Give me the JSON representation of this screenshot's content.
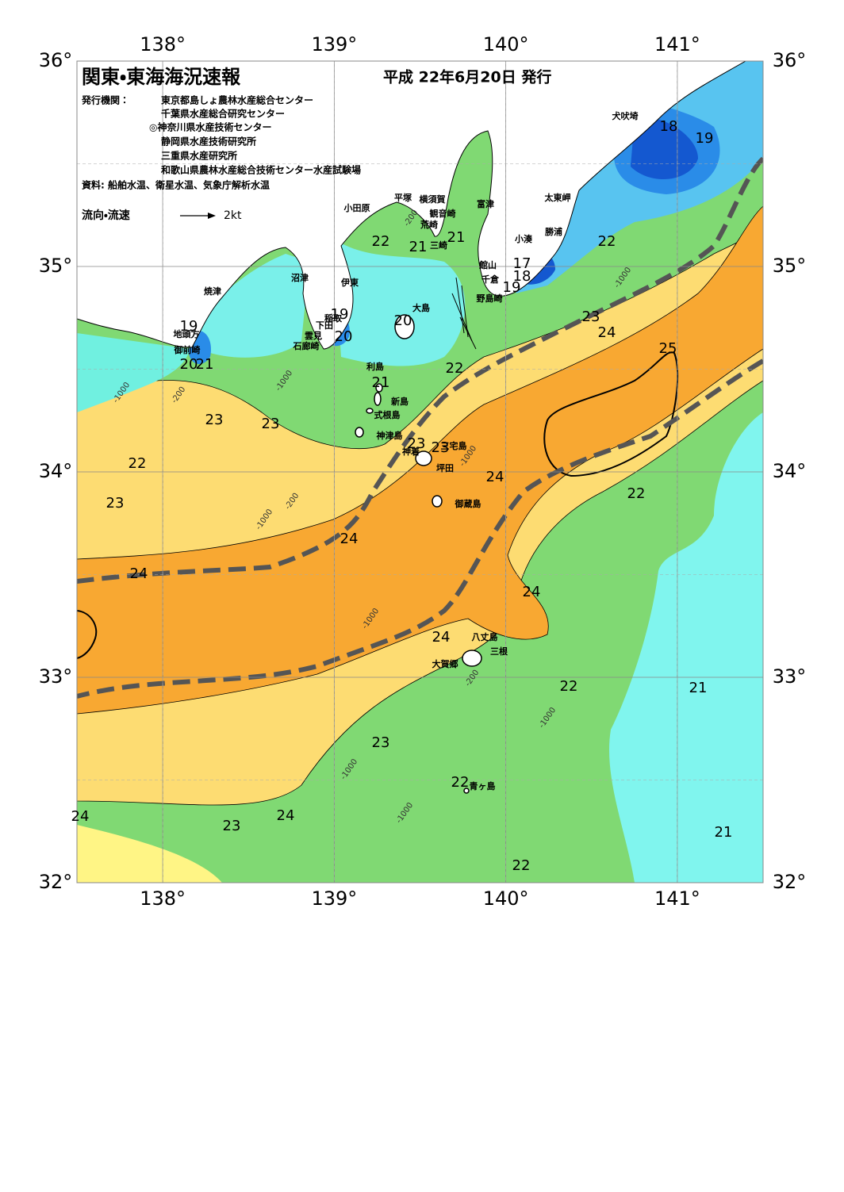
{
  "header": {
    "title": "関東・東海海況速報",
    "date": "平成 22年6月20日 発行",
    "issuer_label": "発行機関：",
    "issuers": [
      "東京都島しょ農林水産総合センター",
      "千葉県水産総合研究センター",
      "◎神奈川県水産技術センター",
      "静岡県水産技術研究所",
      "三重県水産研究所",
      "和歌山県農林水産総合技術センター水産試験場"
    ],
    "sources": "資料: 船舶水温、衛星水温、気象庁解析水温"
  },
  "legend": {
    "label": "流向・流速",
    "speed": "2kt"
  },
  "axes": {
    "longitude": {
      "range": [
        137.5,
        141.5
      ],
      "ticks": [
        {
          "value": 138,
          "label": "138°"
        },
        {
          "value": 139,
          "label": "139°"
        },
        {
          "value": 140,
          "label": "140°"
        },
        {
          "value": 141,
          "label": "141°"
        }
      ]
    },
    "latitude": {
      "range": [
        32,
        36
      ],
      "ticks": [
        {
          "value": 36,
          "label": "36°"
        },
        {
          "value": 35,
          "label": "35°"
        },
        {
          "value": 34,
          "label": "34°"
        },
        {
          "value": 33,
          "label": "33°"
        },
        {
          "value": 32,
          "label": "32°"
        }
      ]
    }
  },
  "places": [
    "犬吠埼",
    "太東岬",
    "勝浦",
    "小湊",
    "館山",
    "千倉",
    "野島崎",
    "富津",
    "横須賀",
    "観音崎",
    "平塚",
    "小田原",
    "荒崎",
    "三崎",
    "沼津",
    "伊東",
    "焼津",
    "稲取",
    "下田",
    "雲見",
    "石廊崎",
    "大島",
    "地頭方",
    "御前崎",
    "利島",
    "新島",
    "式根島",
    "神津島",
    "神着",
    "三宅島",
    "坪田",
    "御蔵島",
    "八丈島",
    "三根",
    "大賀郷",
    "青ヶ島"
  ],
  "contour_labels": [
    18,
    19,
    22,
    21,
    21,
    22,
    17,
    18,
    19,
    19,
    20,
    20,
    19,
    20,
    21,
    23,
    24,
    25,
    22,
    21,
    23,
    23,
    23,
    23,
    22,
    24,
    23,
    22,
    24,
    24,
    24,
    24,
    22,
    21,
    23,
    22,
    24,
    23,
    21,
    22,
    24
  ],
  "depth_labels": [
    -200,
    -1000,
    -1000,
    -200,
    -1000,
    -200,
    -1000,
    -1000,
    -1000,
    -200,
    -1000,
    -1000,
    -1000
  ]
}
